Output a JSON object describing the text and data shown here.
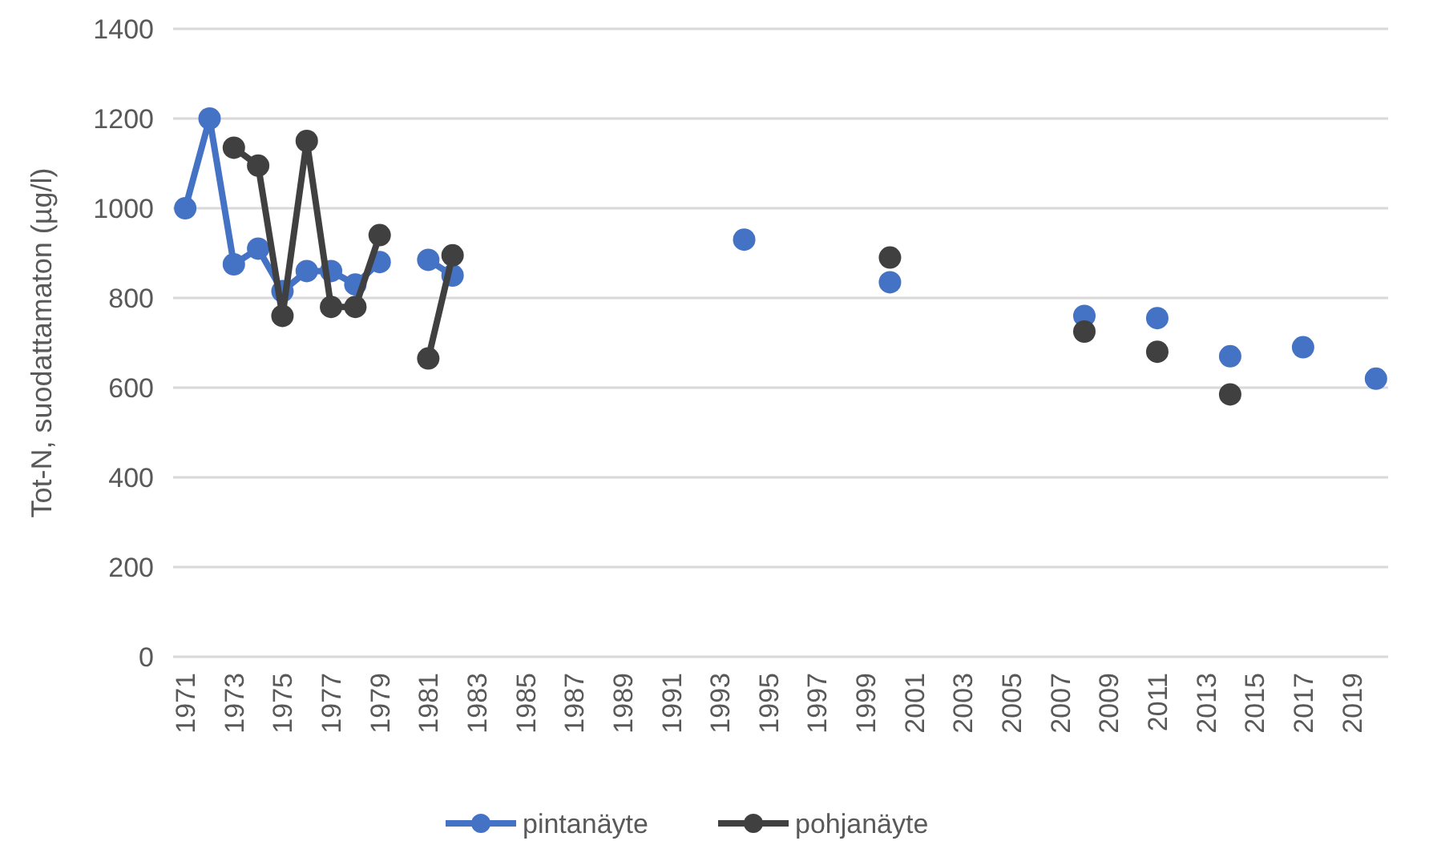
{
  "chart_data": {
    "type": "line",
    "ylabel": "Tot-N,  suodattamaton (µg/l)",
    "categories": [
      "1971",
      null,
      "1973",
      null,
      "1975",
      null,
      "1977",
      null,
      "1979",
      null,
      "1981",
      null,
      "1983",
      null,
      "1985",
      null,
      "1987",
      null,
      "1989",
      null,
      "1991",
      null,
      "1993",
      null,
      "1995",
      null,
      "1997",
      null,
      "1999",
      null,
      "2001",
      null,
      "2003",
      null,
      "2005",
      null,
      "2007",
      null,
      "2009",
      null,
      "2011",
      null,
      "2013",
      null,
      "2015",
      null,
      "2017",
      null,
      "2019",
      null
    ],
    "series": [
      {
        "name": "pintanäyte",
        "color": "#4472c4",
        "values": [
          1000,
          1200,
          875,
          910,
          815,
          860,
          860,
          830,
          880,
          null,
          885,
          850,
          null,
          null,
          null,
          null,
          null,
          null,
          null,
          null,
          null,
          null,
          null,
          930,
          null,
          null,
          null,
          null,
          null,
          835,
          null,
          null,
          null,
          null,
          null,
          null,
          null,
          760,
          null,
          null,
          755,
          null,
          null,
          670,
          null,
          null,
          690,
          null,
          null,
          620
        ]
      },
      {
        "name": "pohjanäyte",
        "color": "#404040",
        "values": [
          null,
          null,
          1135,
          1095,
          760,
          1150,
          780,
          780,
          940,
          null,
          665,
          895,
          null,
          null,
          null,
          null,
          null,
          null,
          null,
          null,
          null,
          null,
          null,
          null,
          null,
          null,
          null,
          null,
          null,
          890,
          null,
          null,
          null,
          null,
          null,
          null,
          null,
          725,
          null,
          null,
          680,
          null,
          null,
          585,
          null,
          null,
          null,
          null,
          null,
          null
        ]
      }
    ],
    "ylim": [
      0,
      1400
    ],
    "yticks": [
      0,
      200,
      400,
      600,
      800,
      1000,
      1200,
      1400
    ],
    "grid": "y",
    "legend": "bottom",
    "marker": "circle",
    "line_style": "solid"
  }
}
